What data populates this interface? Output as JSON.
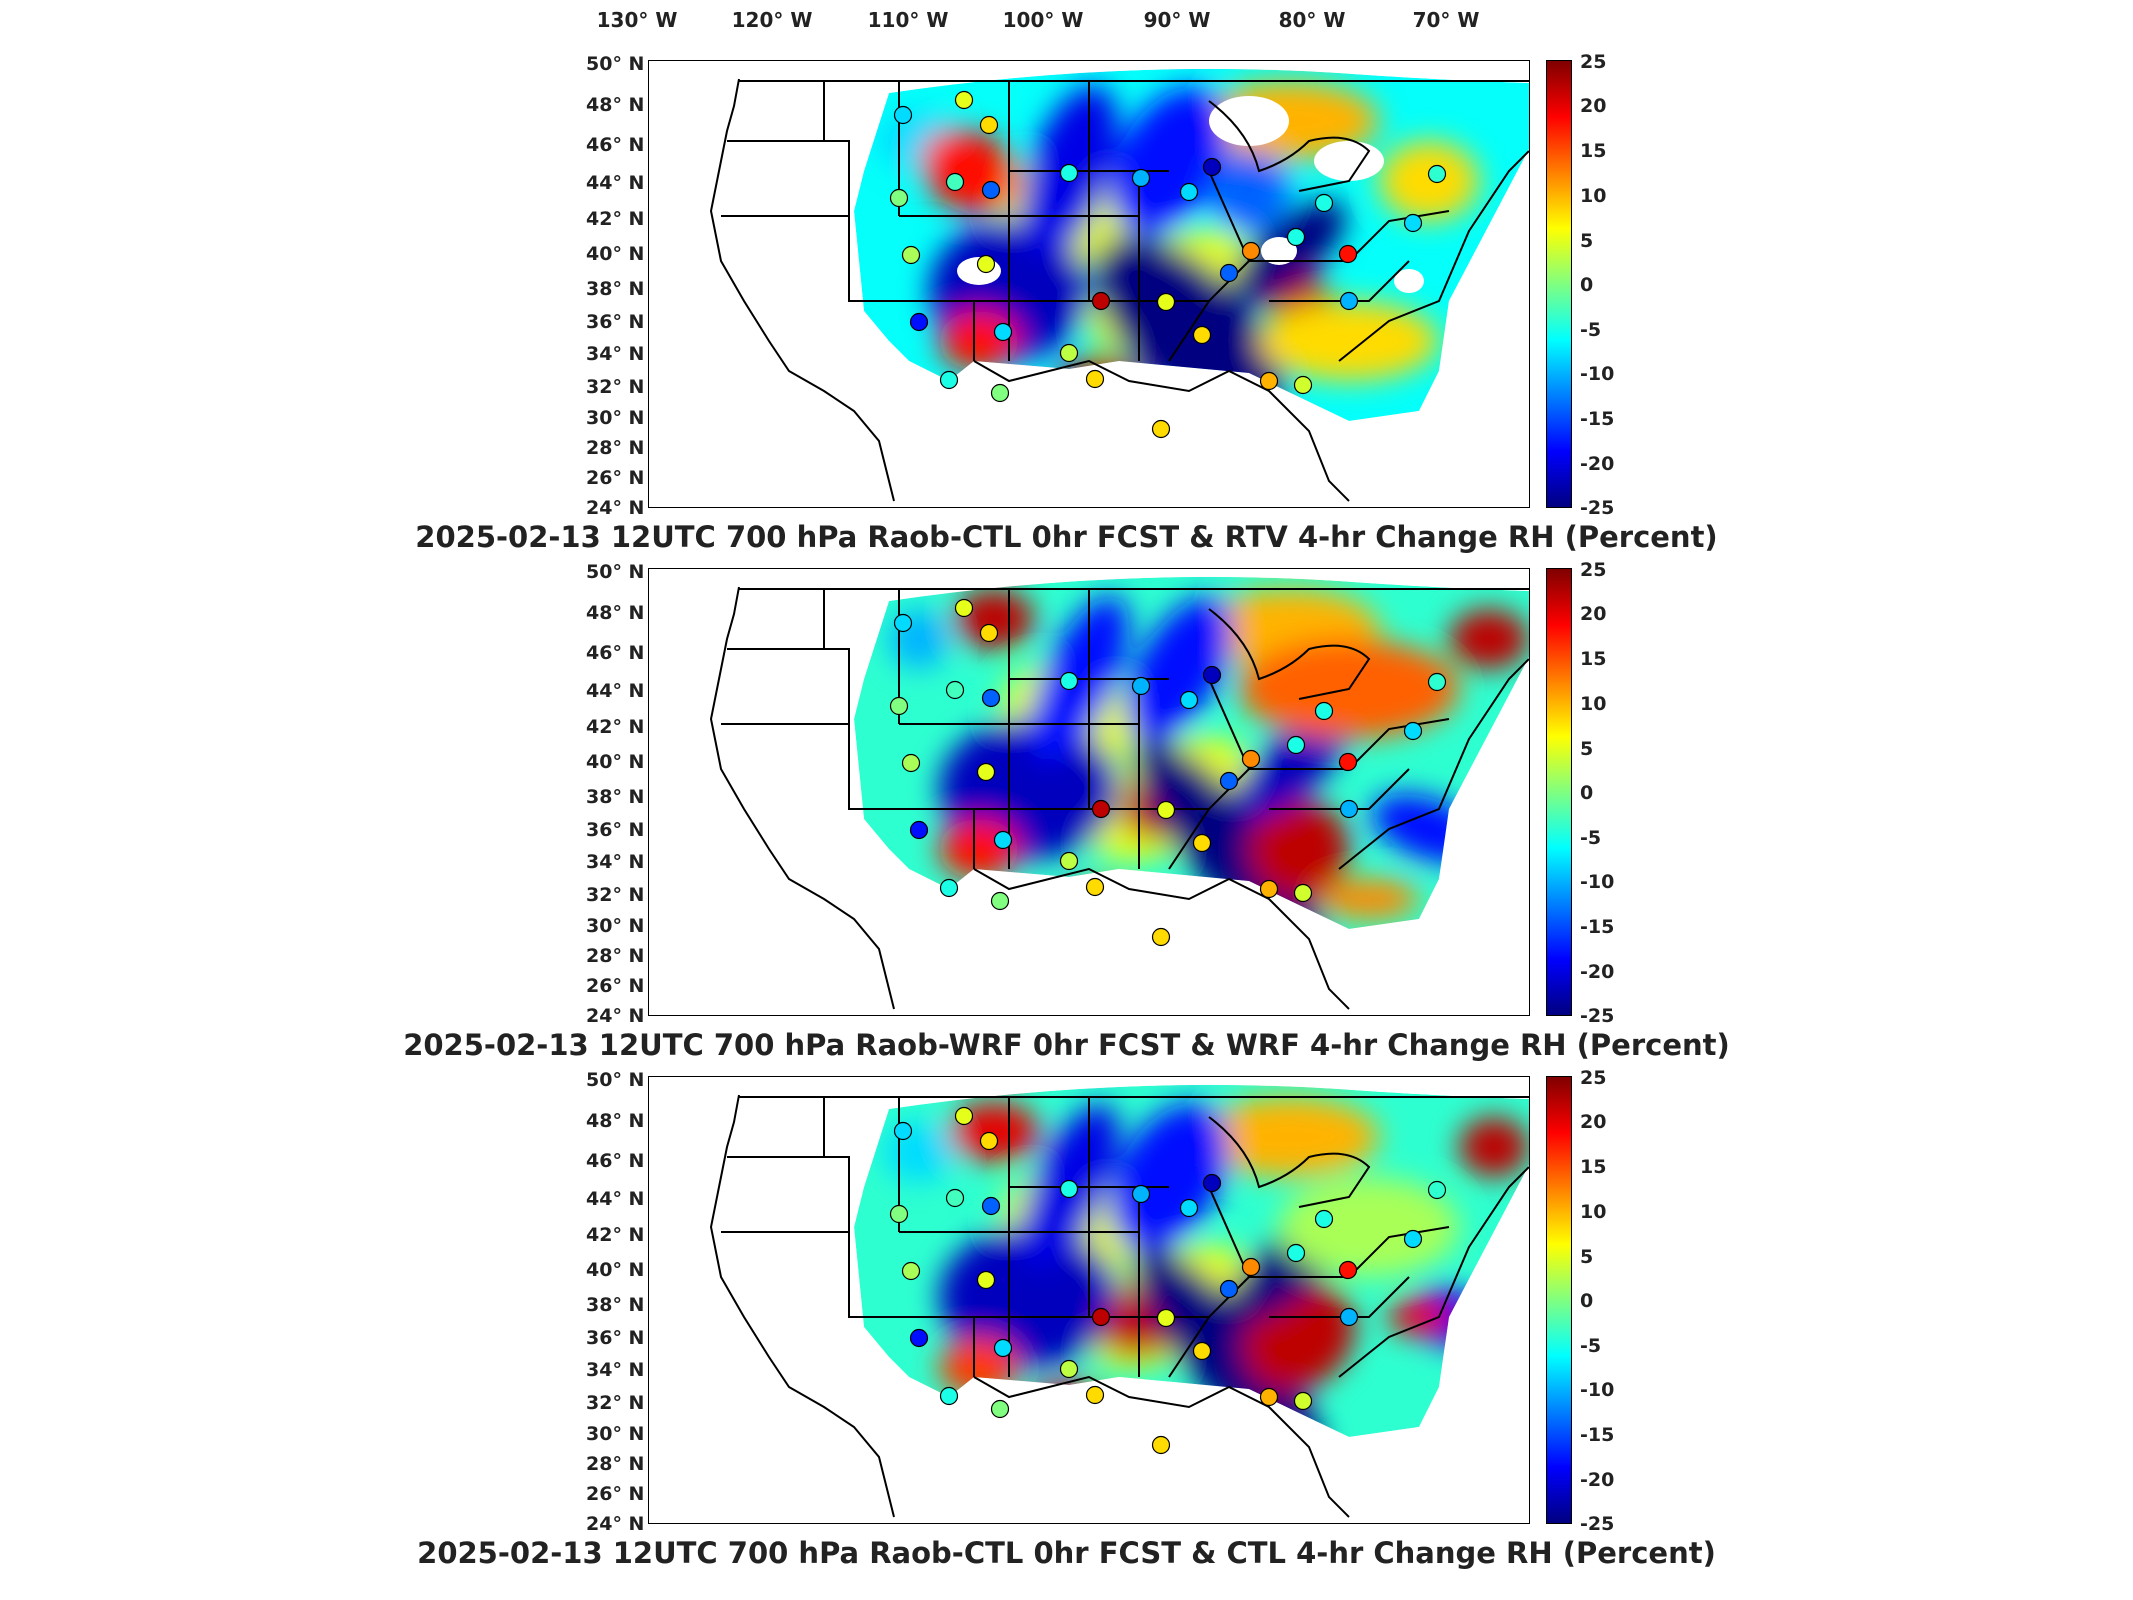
{
  "longitude_labels": [
    "130° W",
    "120° W",
    "110° W",
    "100° W",
    "90° W",
    "80° W",
    "70° W"
  ],
  "latitude_labels": [
    "50° N",
    "48° N",
    "46° N",
    "44° N",
    "42° N",
    "40° N",
    "38° N",
    "36° N",
    "34° N",
    "32° N",
    "30° N",
    "28° N",
    "26° N",
    "24° N"
  ],
  "colorbar": {
    "ticks": [
      "25",
      "20",
      "15",
      "10",
      "5",
      "0",
      "-5",
      "-10",
      "-15",
      "-20",
      "-25"
    ],
    "range": [
      -25,
      25
    ],
    "colors": [
      "#000080",
      "#0000ff",
      "#0080ff",
      "#00ffff",
      "#80ff80",
      "#ffff00",
      "#ff8000",
      "#ff0000",
      "#800000"
    ]
  },
  "panels": [
    {
      "title": "2025-02-13 12UTC 700 hPa Raob-CTL 0hr FCST & RTV 4-hr Change RH (Percent)",
      "variant": "rtv"
    },
    {
      "title": "2025-02-13 12UTC 700 hPa Raob-WRF 0hr FCST & WRF 4-hr Change RH (Percent)",
      "variant": "wrf"
    },
    {
      "title": "2025-02-13 12UTC 700 hPa Raob-CTL 0hr FCST & CTL 4-hr Change RH (Percent)",
      "variant": "ctl"
    }
  ]
}
